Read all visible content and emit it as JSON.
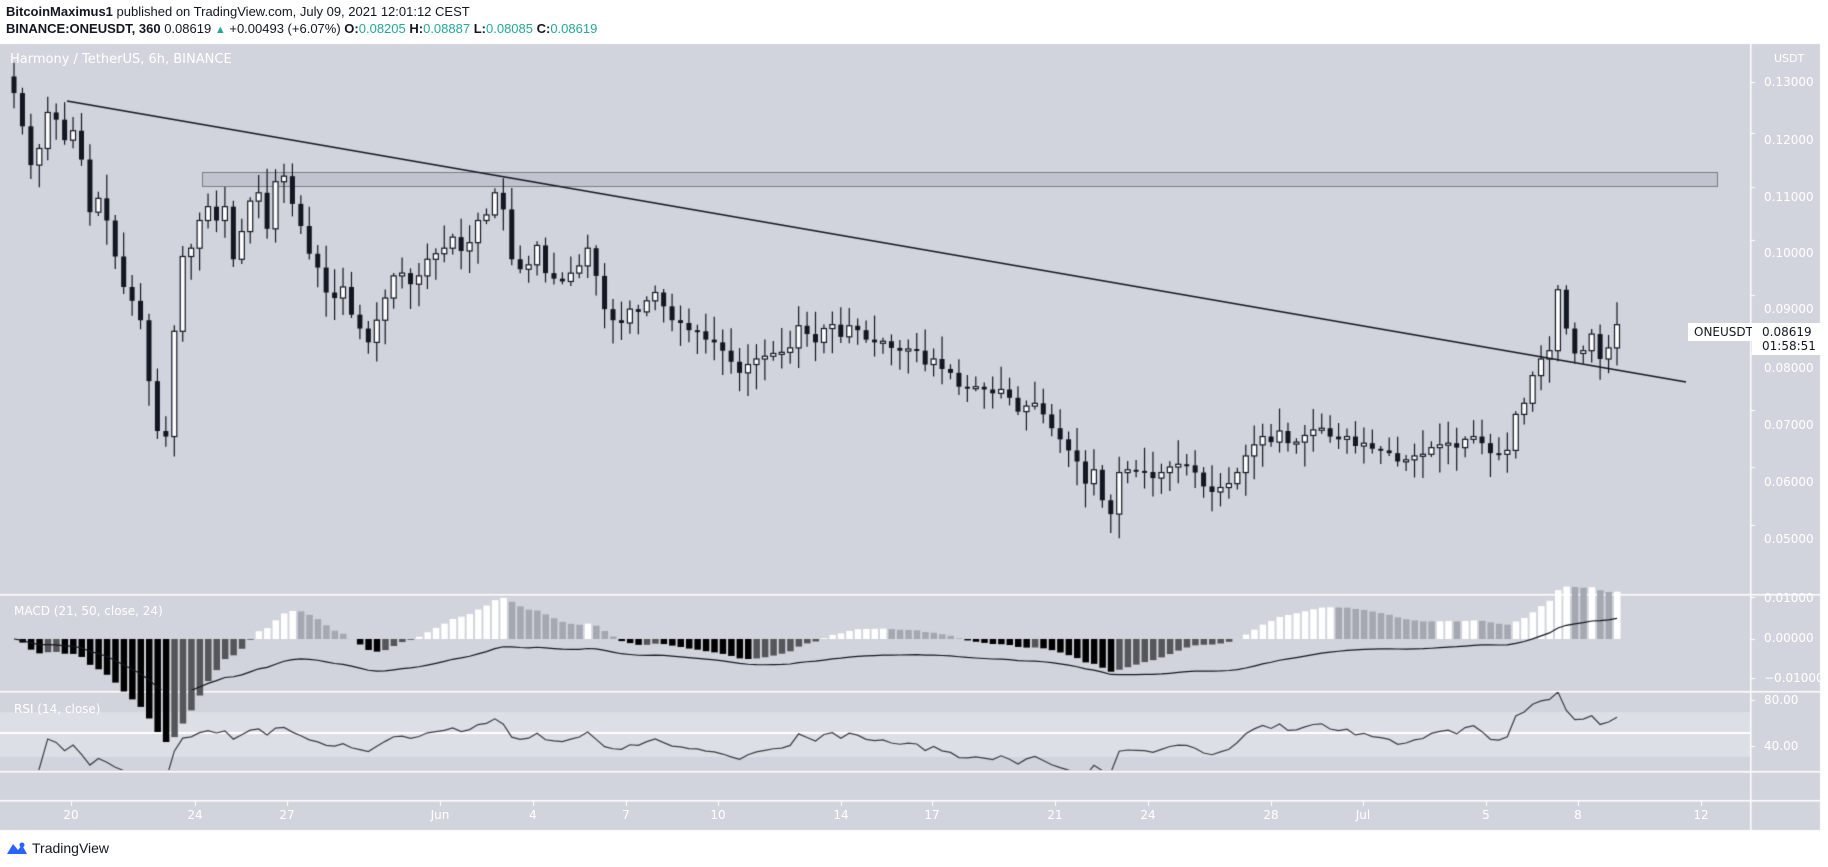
{
  "header": {
    "author": "BitcoinMaximus1",
    "published": "published on TradingView.com, July 09, 2021 12:01:12 CEST",
    "symbol_interval": "BINANCE:ONEUSDT, 360",
    "last": "0.08619",
    "change": "+0.00493 (+6.07%)",
    "o_label": "O:",
    "o": "0.08205",
    "h_label": "H:",
    "h": "0.08887",
    "l_label": "L:",
    "l": "0.08085",
    "c_label": "C:",
    "c": "0.08619"
  },
  "watermark": "Harmony / TetherUS, 6h, BINANCE",
  "price_axis": {
    "unit": "USDT",
    "ticks": [
      "0.13000",
      "0.12000",
      "0.11000",
      "0.10000",
      "0.09000",
      "0.08000",
      "0.07000",
      "0.06000",
      "0.05000"
    ]
  },
  "last_price_tag": {
    "symbol": "ONEUSDT",
    "price": "0.08619",
    "countdown": "01:58:51"
  },
  "macd": {
    "label": "MACD (21, 50, close, 24)",
    "ticks": [
      "0.01000",
      "0.00000",
      "−0.01000"
    ]
  },
  "rsi": {
    "label": "RSI (14, close)",
    "ticks": [
      "80.00",
      "40.00"
    ]
  },
  "time_axis": {
    "ticks": [
      "20",
      "24",
      "27",
      "Jun",
      "4",
      "7",
      "10",
      "14",
      "17",
      "21",
      "24",
      "28",
      "Jul",
      "5",
      "8",
      "12"
    ]
  },
  "footer": {
    "brand": "TradingView"
  },
  "colors": {
    "bg": "#d1d4dc",
    "up_body": "#ffffff",
    "down_body": "#131722",
    "wick": "#131722",
    "teal": "#26a69a",
    "brand": "#2962ff"
  },
  "chart_data": {
    "type": "candlestick",
    "title": "Harmony / TetherUS, 6h, BINANCE",
    "xlabel": "",
    "ylabel": "USDT",
    "ylim": [
      0.042,
      0.135
    ],
    "x_ticks": [
      "20",
      "24",
      "27",
      "Jun",
      "4",
      "7",
      "10",
      "14",
      "17",
      "21",
      "24",
      "28",
      "Jul",
      "5",
      "8",
      "12"
    ],
    "close_series_approx": [
      0.128,
      0.122,
      0.115,
      0.118,
      0.1245,
      0.1232,
      0.1195,
      0.1212,
      0.116,
      0.1065,
      0.109,
      0.105,
      0.0985,
      0.093,
      0.0905,
      0.087,
      0.076,
      0.067,
      0.066,
      0.085,
      0.0985,
      0.1,
      0.105,
      0.1075,
      0.105,
      0.1075,
      0.098,
      0.103,
      0.1085,
      0.11,
      0.1035,
      0.112,
      0.113,
      0.108,
      0.104,
      0.099,
      0.0965,
      0.092,
      0.091,
      0.093,
      0.088,
      0.0855,
      0.083,
      0.087,
      0.091,
      0.095,
      0.0955,
      0.0935,
      0.095,
      0.098,
      0.099,
      0.1,
      0.102,
      0.0995,
      0.101,
      0.105,
      0.106,
      0.11,
      0.107,
      0.098,
      0.0962,
      0.097,
      0.1005,
      0.0955,
      0.0945,
      0.094,
      0.0955,
      0.0968,
      0.1,
      0.095,
      0.089,
      0.087,
      0.0865,
      0.089,
      0.0885,
      0.0905,
      0.092,
      0.0895,
      0.087,
      0.0865,
      0.0852,
      0.085,
      0.0835,
      0.083,
      0.0815,
      0.0795,
      0.0775,
      0.079,
      0.08,
      0.0805,
      0.081,
      0.0812,
      0.082,
      0.086,
      0.0845,
      0.083,
      0.0855,
      0.0862,
      0.084,
      0.086,
      0.0852,
      0.0835,
      0.083,
      0.0832,
      0.082,
      0.0815,
      0.0818,
      0.0815,
      0.079,
      0.08,
      0.0782,
      0.0775,
      0.075,
      0.0748,
      0.075,
      0.0745,
      0.0738,
      0.0745,
      0.073,
      0.0705,
      0.0715,
      0.072,
      0.07,
      0.0675,
      0.0655,
      0.0635,
      0.0615,
      0.0575,
      0.06,
      0.0545,
      0.052,
      0.0595,
      0.06,
      0.0598,
      0.0596,
      0.0585,
      0.0595,
      0.0605,
      0.061,
      0.0608,
      0.0595,
      0.057,
      0.056,
      0.0568,
      0.0575,
      0.0595,
      0.0625,
      0.0645,
      0.066,
      0.065,
      0.067,
      0.0648,
      0.065,
      0.0662,
      0.0672,
      0.0675,
      0.066,
      0.0655,
      0.066,
      0.0643,
      0.0648,
      0.0638,
      0.0635,
      0.063,
      0.0615,
      0.0618,
      0.0625,
      0.0628,
      0.064,
      0.0645,
      0.0648,
      0.064,
      0.0655,
      0.066,
      0.0648,
      0.063,
      0.0628,
      0.0635,
      0.07,
      0.072,
      0.077,
      0.08,
      0.0815,
      0.0925,
      0.0855,
      0.081,
      0.0815,
      0.0845,
      0.08,
      0.082,
      0.0862
    ]
  }
}
